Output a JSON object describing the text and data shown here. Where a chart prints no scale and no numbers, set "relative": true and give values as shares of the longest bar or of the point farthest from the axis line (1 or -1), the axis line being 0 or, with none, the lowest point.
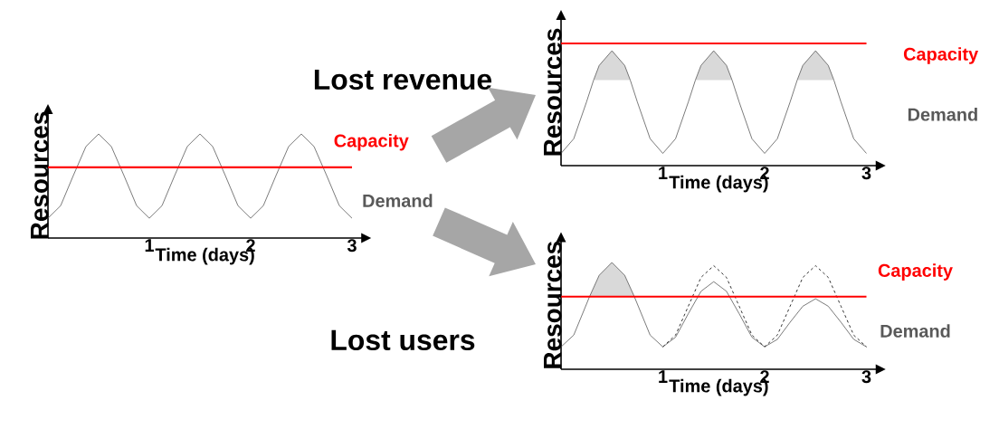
{
  "chart_data": [
    {
      "type": "line",
      "relative": true,
      "xlabel": "Time (days)",
      "ylabel": "Resources",
      "xlim": [
        0,
        3.1
      ],
      "xticks": [
        1,
        2,
        3
      ],
      "series": [
        {
          "name": "Demand",
          "color": "#595959",
          "x": [
            0,
            0.125,
            0.25,
            0.375,
            0.5,
            0.625,
            0.75,
            0.875,
            1,
            1.125,
            1.25,
            1.375,
            1.5,
            1.625,
            1.75,
            1.875,
            2,
            2.125,
            2.25,
            2.375,
            2.5,
            2.625,
            2.75,
            2.875,
            3
          ],
          "values": [
            0.19,
            0.31,
            0.6,
            0.88,
            1,
            0.88,
            0.6,
            0.31,
            0.19,
            0.31,
            0.6,
            0.88,
            1,
            0.88,
            0.6,
            0.31,
            0.19,
            0.31,
            0.6,
            0.88,
            1,
            0.88,
            0.6,
            0.31,
            0.19
          ]
        },
        {
          "name": "Capacity",
          "color": "#ff0000",
          "x": [
            0,
            3
          ],
          "values": [
            0.68,
            0.68
          ]
        }
      ]
    },
    {
      "type": "line",
      "relative": true,
      "xlabel": "Time (days)",
      "ylabel": "Resources",
      "xlim": [
        0,
        3.1
      ],
      "xticks": [
        1,
        2,
        3
      ],
      "annotations": [
        "Lost revenue"
      ],
      "series": [
        {
          "name": "Demand",
          "color": "#595959",
          "x": [
            0,
            0.125,
            0.25,
            0.32,
            0.375,
            0.5,
            0.625,
            0.68,
            0.75,
            0.875,
            1,
            1.125,
            1.25,
            1.32,
            1.375,
            1.5,
            1.625,
            1.68,
            1.75,
            1.875,
            2,
            2.125,
            2.25,
            2.32,
            2.375,
            2.5,
            2.625,
            2.68,
            2.75,
            2.875,
            3
          ],
          "values": [
            0.1,
            0.22,
            0.52,
            0.7,
            0.82,
            0.94,
            0.82,
            0.7,
            0.52,
            0.22,
            0.1,
            0.22,
            0.52,
            0.7,
            0.82,
            0.94,
            0.82,
            0.7,
            0.52,
            0.22,
            0.1,
            0.22,
            0.52,
            0.7,
            0.82,
            0.94,
            0.82,
            0.7,
            0.52,
            0.22,
            0.1
          ],
          "lower": [
            null,
            null,
            null,
            0.7,
            0.7,
            0.7,
            0.7,
            0.7,
            null,
            null,
            null,
            null,
            null,
            0.7,
            0.7,
            0.7,
            0.7,
            0.7,
            null,
            null,
            null,
            null,
            null,
            0.7,
            0.7,
            0.7,
            0.7,
            0.7,
            null,
            null,
            null
          ],
          "upper": [
            null,
            null,
            null,
            0.7,
            0.82,
            0.94,
            0.82,
            0.7,
            null,
            null,
            null,
            null,
            null,
            0.7,
            0.82,
            0.94,
            0.82,
            0.7,
            null,
            null,
            null,
            null,
            null,
            0.7,
            0.82,
            0.94,
            0.82,
            0.7,
            null,
            null,
            null
          ]
        },
        {
          "name": "Capacity",
          "color": "#ff0000",
          "x": [
            0,
            3
          ],
          "values": [
            1,
            1
          ]
        }
      ]
    },
    {
      "type": "line",
      "relative": true,
      "xlabel": "Time (days)",
      "ylabel": "Resources",
      "xlim": [
        0,
        3.1
      ],
      "xticks": [
        1,
        2,
        3
      ],
      "annotations": [
        "Lost users"
      ],
      "series": [
        {
          "name": "Demand",
          "color": "#595959",
          "x": [
            0,
            0.125,
            0.25,
            0.28,
            0.375,
            0.5,
            0.625,
            0.72,
            0.75,
            0.875,
            1,
            1.125,
            1.25,
            1.375,
            1.5,
            1.625,
            1.75,
            1.875,
            2,
            2.125,
            2.25,
            2.375,
            2.5,
            2.625,
            2.75,
            2.875,
            3
          ],
          "values": [
            0.21,
            0.32,
            0.61,
            0.68,
            0.88,
            1,
            0.88,
            0.68,
            0.61,
            0.32,
            0.21,
            0.3,
            0.52,
            0.73,
            0.82,
            0.73,
            0.52,
            0.3,
            0.21,
            0.28,
            0.44,
            0.59,
            0.66,
            0.59,
            0.44,
            0.28,
            0.21
          ],
          "lower": [
            null,
            null,
            null,
            0.68,
            0.68,
            0.68,
            0.68,
            0.68,
            null,
            null,
            null,
            null,
            null,
            null,
            null,
            null,
            null,
            null,
            null,
            null,
            null,
            null,
            null,
            null,
            null,
            null,
            null
          ],
          "upper": [
            null,
            null,
            null,
            0.68,
            0.88,
            1,
            0.88,
            0.68,
            null,
            null,
            null,
            null,
            null,
            null,
            null,
            null,
            null,
            null,
            null,
            null,
            null,
            null,
            null,
            null,
            null,
            null,
            null
          ]
        },
        {
          "color": "#000000",
          "line_style": "dashed",
          "x": [
            1,
            1.125,
            1.25,
            1.375,
            1.5,
            1.625,
            1.75,
            1.875,
            2,
            2.125,
            2.25,
            2.375,
            2.5,
            2.625,
            2.75,
            2.875,
            3
          ],
          "values": [
            0.21,
            0.32,
            0.59,
            0.86,
            0.97,
            0.86,
            0.59,
            0.32,
            0.21,
            0.32,
            0.59,
            0.86,
            0.97,
            0.86,
            0.59,
            0.32,
            0.21
          ]
        },
        {
          "name": "Capacity",
          "color": "#ff0000",
          "x": [
            0,
            3
          ],
          "values": [
            0.68,
            0.68
          ]
        }
      ]
    }
  ]
}
